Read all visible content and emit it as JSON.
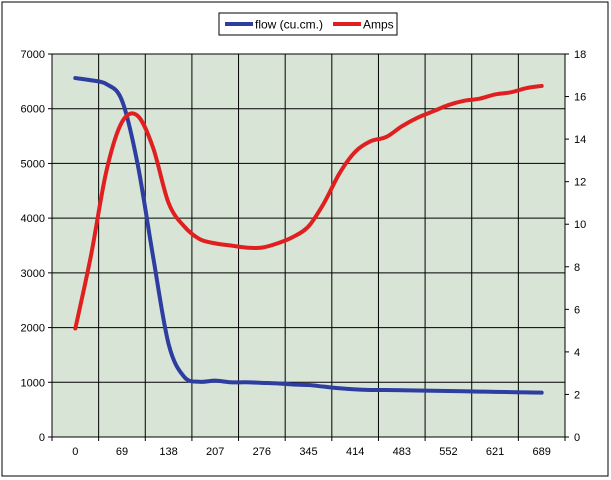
{
  "chart_data": {
    "type": "line",
    "x": [
      0,
      23,
      46,
      69,
      92,
      115,
      138,
      161,
      184,
      207,
      230,
      253,
      276,
      299,
      322,
      345,
      368,
      391,
      414,
      437,
      460,
      483,
      506,
      529,
      552,
      575,
      598,
      621,
      644,
      667,
      689
    ],
    "x_tick_labels": [
      "0",
      "69",
      "138",
      "207",
      "276",
      "345",
      "414",
      "483",
      "552",
      "621",
      "689"
    ],
    "series": [
      {
        "name": "flow (cu.cm.)",
        "axis": "left",
        "color": "#2E3DA0",
        "values": [
          6560,
          6520,
          6450,
          6150,
          5000,
          3300,
          1700,
          1100,
          1010,
          1030,
          1000,
          1000,
          990,
          980,
          960,
          950,
          920,
          890,
          870,
          860,
          860,
          855,
          850,
          845,
          840,
          835,
          830,
          825,
          820,
          815,
          810
        ]
      },
      {
        "name": "Amps",
        "axis": "right",
        "color": "#E02020",
        "values": [
          5.1,
          8.5,
          12.5,
          14.8,
          15.1,
          13.6,
          11.0,
          9.9,
          9.3,
          9.1,
          9.0,
          8.9,
          8.9,
          9.1,
          9.4,
          9.9,
          11.0,
          12.4,
          13.4,
          13.9,
          14.1,
          14.6,
          15.0,
          15.3,
          15.6,
          15.8,
          15.9,
          16.1,
          16.2,
          16.4,
          16.5
        ]
      }
    ],
    "left_axis": {
      "ylim": [
        0,
        7000
      ],
      "ticks": [
        "0",
        "1000",
        "2000",
        "3000",
        "4000",
        "5000",
        "6000",
        "7000"
      ]
    },
    "right_axis": {
      "ylim": [
        0,
        18
      ],
      "ticks": [
        "0",
        "2",
        "4",
        "6",
        "8",
        "10",
        "12",
        "14",
        "16",
        "18"
      ]
    },
    "xlim": [
      0,
      689
    ],
    "title": "",
    "xlabel": "",
    "ylabel": "",
    "grid": true,
    "plot_background": "#D8E4D6",
    "legend_position": "top"
  }
}
